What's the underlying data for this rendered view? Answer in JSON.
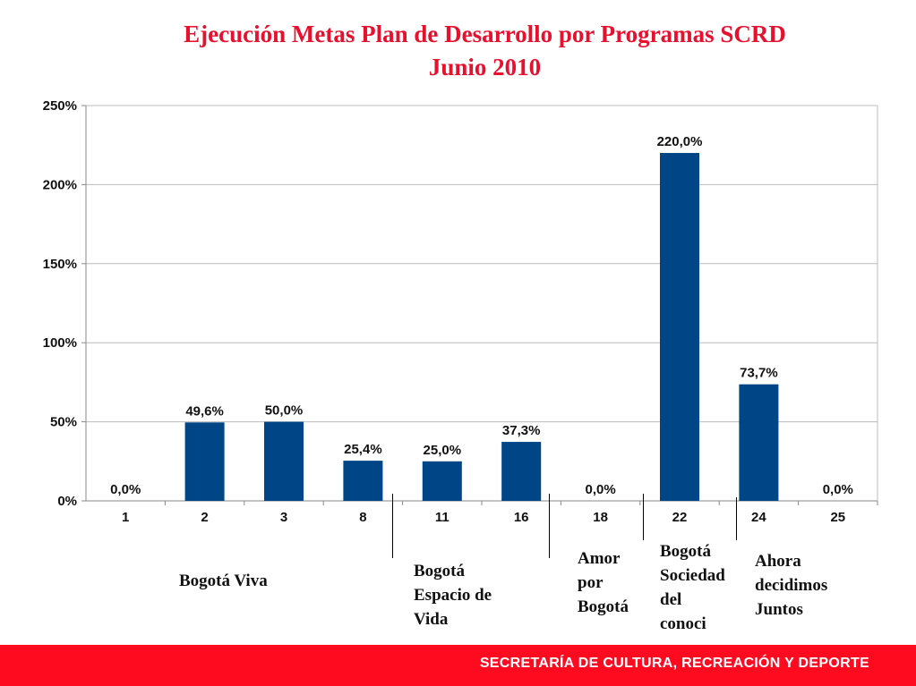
{
  "title_line1": "Ejecución Metas Plan de Desarrollo por Programas SCRD",
  "title_line2": "Junio 2010",
  "chart_data": {
    "type": "bar",
    "categories": [
      "1",
      "2",
      "3",
      "8",
      "11",
      "16",
      "18",
      "22",
      "24",
      "25"
    ],
    "values": [
      0.0,
      49.6,
      50.0,
      25.4,
      25.0,
      37.3,
      0.0,
      220.0,
      73.7,
      0.0
    ],
    "data_labels": [
      "0,0%",
      "49,6%",
      "50,0%",
      "25,4%",
      "25,0%",
      "37,3%",
      "0,0%",
      "220,0%",
      "73,7%",
      "0,0%"
    ],
    "y_ticks": [
      "0%",
      "50%",
      "100%",
      "150%",
      "200%",
      "250%"
    ],
    "ylim": [
      0,
      250
    ],
    "grid": true,
    "bar_color": "#004586"
  },
  "groups": {
    "bogota_viva": "Bogotá Viva",
    "espacio_vida": [
      "Bogotá",
      "Espacio de",
      "Vida"
    ],
    "amor_bogota": [
      "Amor",
      "por",
      "Bogotá"
    ],
    "sociedad": [
      "Bogotá",
      "Sociedad",
      "del",
      "conoci"
    ],
    "ahora": [
      "Ahora",
      "decidimos",
      "Juntos"
    ]
  },
  "footer_text": "SECRETARÍA DE CULTURA, RECREACIÓN Y DEPORTE",
  "colors": {
    "title": "#e8112d",
    "footer_bg": "#ff0b1f"
  }
}
